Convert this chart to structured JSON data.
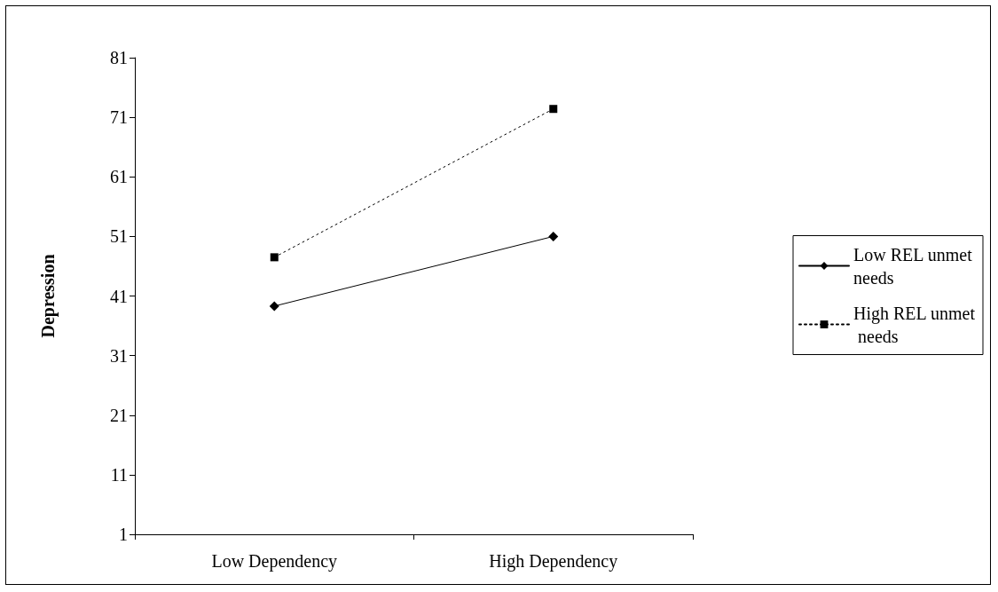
{
  "chart_data": {
    "type": "line",
    "ylabel": "Depression",
    "categories": [
      "Low Dependency",
      "High Dependency"
    ],
    "series": [
      {
        "name": "Low REL unmet needs",
        "color": "#000000",
        "values": [
          39.3,
          51
        ],
        "marker": "diamond",
        "line_style": "solid"
      },
      {
        "name": "High REL unmet needs",
        "color": "#000000",
        "values": [
          47.5,
          72.4
        ],
        "marker": "square",
        "line_style": "dotted"
      }
    ],
    "ylim": [
      1,
      81
    ],
    "yticks": [
      1,
      11,
      21,
      31,
      41,
      51,
      61,
      71,
      81
    ],
    "grid": false,
    "legend": "right"
  }
}
